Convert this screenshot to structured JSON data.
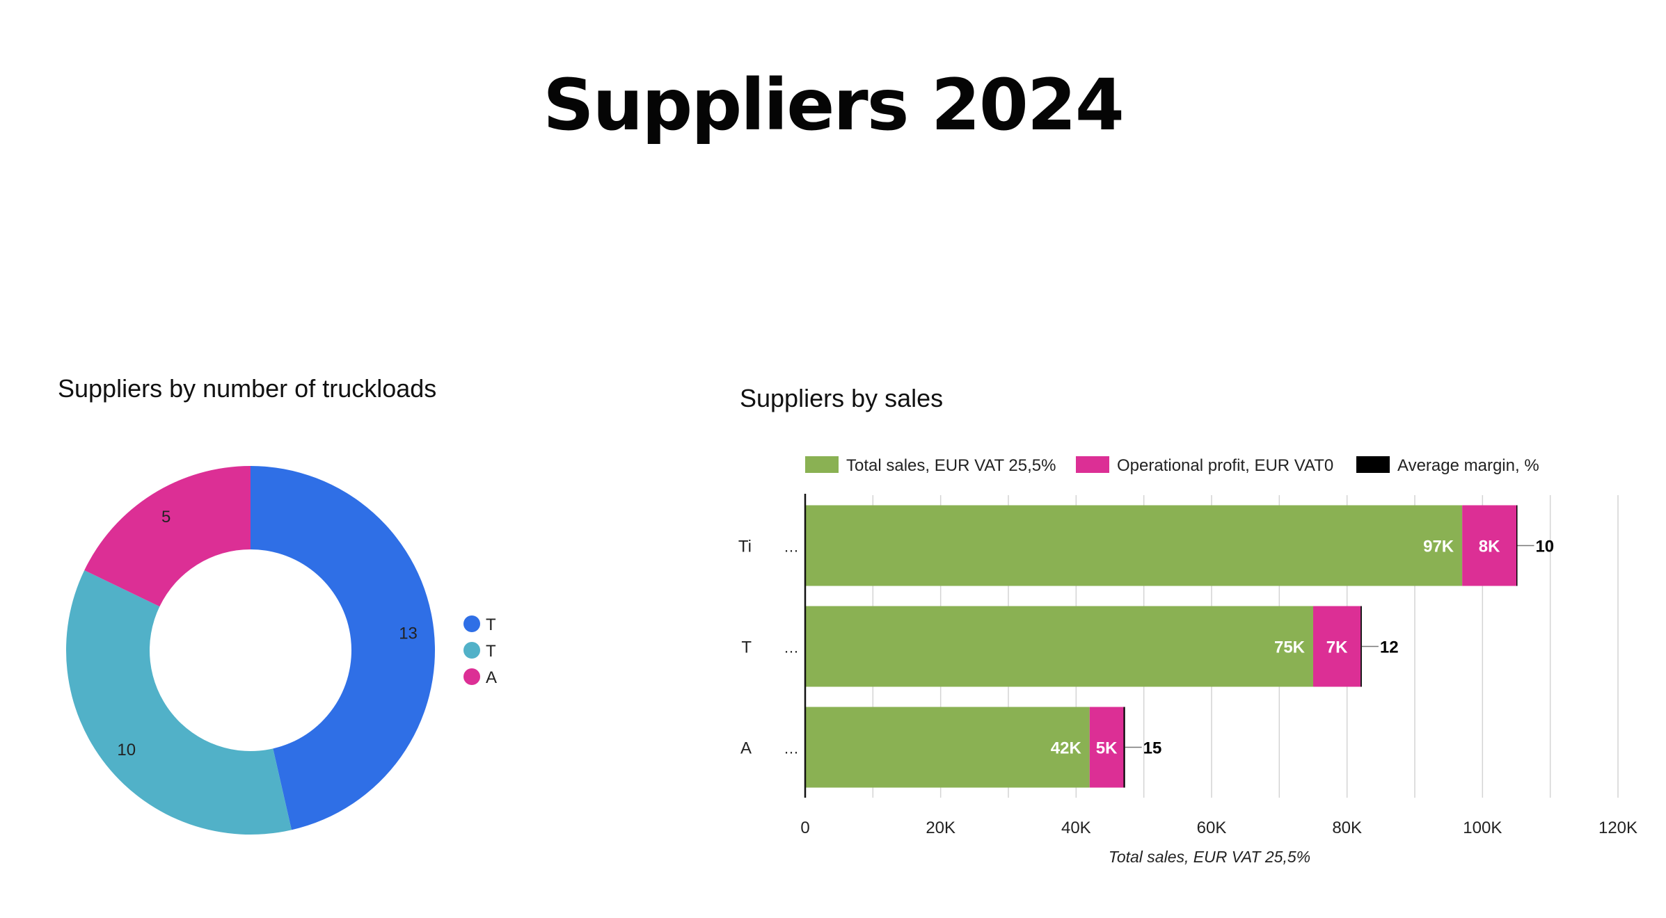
{
  "page": {
    "title": "Suppliers 2024"
  },
  "colors": {
    "blue": "#2f6fe6",
    "teal": "#51b1c8",
    "pink": "#dc2f95",
    "green": "#8ab153",
    "black": "#000000"
  },
  "chart_data": [
    {
      "type": "pie",
      "title": "Suppliers by number of truckloads",
      "donut": true,
      "labels": [
        "T",
        "T",
        "A"
      ],
      "values": [
        13,
        10,
        5
      ],
      "colors": [
        "#2f6fe6",
        "#51b1c8",
        "#dc2f95"
      ],
      "legend": "right"
    },
    {
      "type": "bar",
      "orientation": "horizontal",
      "stacked": true,
      "title": "Suppliers by sales",
      "xlabel": "Total sales, EUR VAT 25,5%",
      "categories": [
        "Ti",
        "T",
        "A"
      ],
      "series": [
        {
          "name": "Total sales, EUR VAT 25,5%",
          "values": [
            97000,
            75000,
            42000
          ],
          "labels": [
            "97K",
            "75K",
            "42K"
          ],
          "color": "#8ab153"
        },
        {
          "name": "Operational profit, EUR VAT0",
          "values": [
            8000,
            7000,
            5000
          ],
          "labels": [
            "8K",
            "7K",
            "5K"
          ],
          "color": "#dc2f95"
        },
        {
          "name": "Average margin, %",
          "values": [
            10,
            12,
            15
          ],
          "labels": [
            "10",
            "12",
            "15"
          ],
          "color": "#000000"
        }
      ],
      "xlim": [
        0,
        120000
      ],
      "xticks": [
        "0",
        "20K",
        "40K",
        "60K",
        "80K",
        "100K",
        "120K"
      ],
      "grid": true,
      "legend": "top"
    }
  ]
}
